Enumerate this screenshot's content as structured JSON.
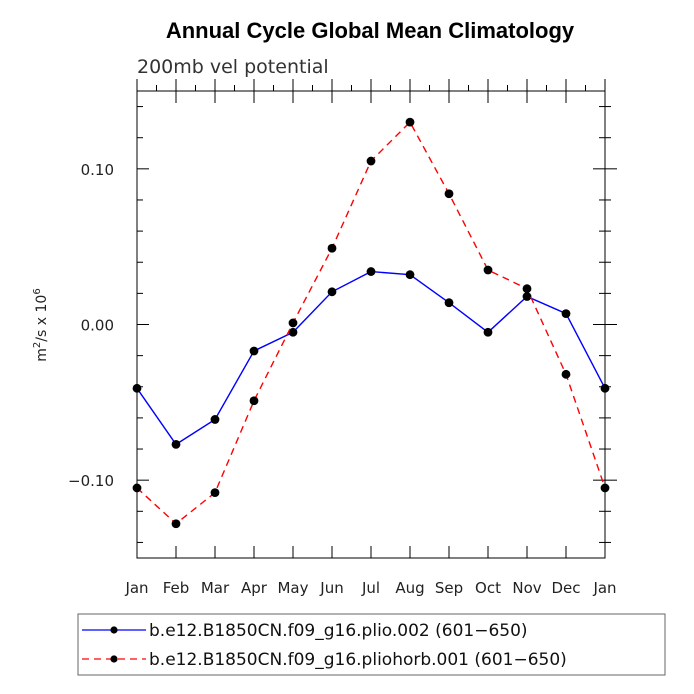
{
  "chart_data": {
    "type": "line",
    "title": "Annual Cycle Global Mean Climatology",
    "subtitle": "200mb vel potential",
    "ylabel": {
      "base": "m",
      "sup1": "2",
      "mid": "/s x 10",
      "sup2": "6"
    },
    "categories": [
      "Jan",
      "Feb",
      "Mar",
      "Apr",
      "May",
      "Jun",
      "Jul",
      "Aug",
      "Sep",
      "Oct",
      "Nov",
      "Dec",
      "Jan"
    ],
    "ylim": [
      -0.15,
      0.15
    ],
    "yticks": [
      -0.1,
      0.0,
      0.1
    ],
    "ytick_labels": [
      "−0.10",
      "0.00",
      "0.10"
    ],
    "series": [
      {
        "name": "b.e12.B1850CN.f09_g16.plio.002 (601−650)",
        "color": "#0000ff",
        "dash": "solid",
        "values": [
          -0.041,
          -0.077,
          -0.061,
          -0.017,
          -0.005,
          0.021,
          0.034,
          0.032,
          0.014,
          -0.005,
          0.018,
          0.007,
          -0.041
        ]
      },
      {
        "name": "b.e12.B1850CN.f09_g16.pliohorb.001 (601−650)",
        "color": "#ff0000",
        "dash": "dashed",
        "values": [
          -0.105,
          -0.128,
          -0.108,
          -0.049,
          0.001,
          0.049,
          0.105,
          0.13,
          0.084,
          0.035,
          0.023,
          -0.032,
          -0.105
        ]
      }
    ],
    "legend_position": "bottom"
  }
}
